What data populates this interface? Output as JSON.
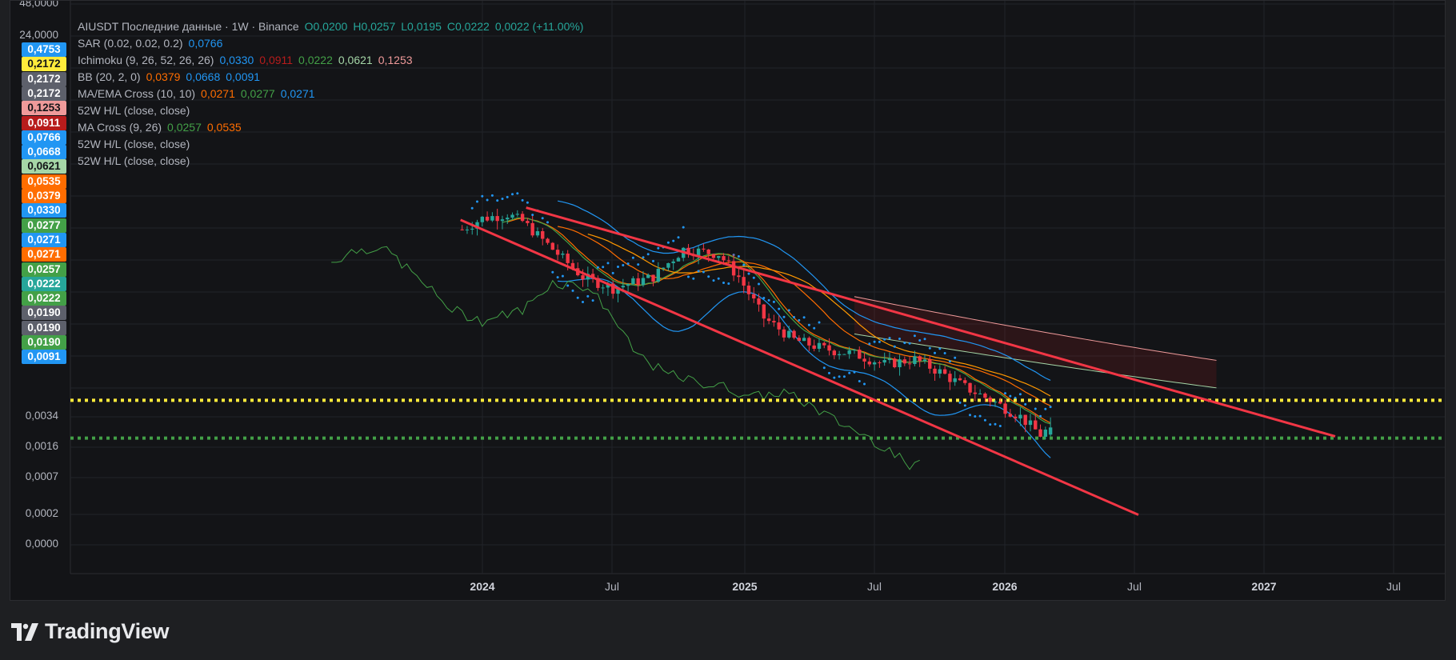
{
  "legend": {
    "main": {
      "symbol": "AIUSDT Последние данные · 1W · Binance",
      "o": "O0,0200",
      "h": "H0,0257",
      "l": "L0,0195",
      "c": "C0,0222",
      "chg": "0,0022 (+11.00%)"
    },
    "rows": [
      {
        "name": "SAR (0.02, 0.02, 0.2)",
        "values": [
          {
            "v": "0,0766",
            "color": "#2196f3"
          }
        ]
      },
      {
        "name": "Ichimoku (9, 26, 52, 26, 26)",
        "values": [
          {
            "v": "0,0330",
            "color": "#2196f3"
          },
          {
            "v": "0,0911",
            "color": "#b71c1c"
          },
          {
            "v": "0,0222",
            "color": "#43a047"
          },
          {
            "v": "0,0621",
            "color": "#a5d6a7"
          },
          {
            "v": "0,1253",
            "color": "#ef9a9a"
          }
        ]
      },
      {
        "name": "BB (20, 2, 0)",
        "values": [
          {
            "v": "0,0379",
            "color": "#ff6d00"
          },
          {
            "v": "0,0668",
            "color": "#2196f3"
          },
          {
            "v": "0,0091",
            "color": "#2196f3"
          }
        ]
      },
      {
        "name": "MA/EMA Cross (10, 10)",
        "values": [
          {
            "v": "0,0271",
            "color": "#ff6d00"
          },
          {
            "v": "0,0277",
            "color": "#43a047"
          },
          {
            "v": "0,0271",
            "color": "#2196f3"
          }
        ]
      },
      {
        "name": "52W H/L (close, close)",
        "values": []
      },
      {
        "name": "MA Cross (9, 26)",
        "values": [
          {
            "v": "0,0257",
            "color": "#43a047"
          },
          {
            "v": "0,0535",
            "color": "#ff6d00"
          }
        ]
      },
      {
        "name": "52W H/L (close, close)",
        "values": []
      },
      {
        "name": "52W H/L (close, close)",
        "values": []
      }
    ]
  },
  "price_axis": {
    "labels": [
      {
        "v": "0,4753",
        "bg": "#2196f3",
        "fg": "#ffffff"
      },
      {
        "v": "0,2172",
        "bg": "#ffeb3b",
        "fg": "#131417"
      },
      {
        "v": "0,2172",
        "bg": "#5d606b",
        "fg": "#ffffff"
      },
      {
        "v": "0,2172",
        "bg": "#5d606b",
        "fg": "#ffffff"
      },
      {
        "v": "0,1253",
        "bg": "#ef9a9a",
        "fg": "#131417"
      },
      {
        "v": "0,0911",
        "bg": "#b71c1c",
        "fg": "#ffffff"
      },
      {
        "v": "0,0766",
        "bg": "#2196f3",
        "fg": "#ffffff"
      },
      {
        "v": "0,0668",
        "bg": "#2196f3",
        "fg": "#ffffff"
      },
      {
        "v": "0,0621",
        "bg": "#a5d6a7",
        "fg": "#131417"
      },
      {
        "v": "0,0535",
        "bg": "#ff6d00",
        "fg": "#ffffff"
      },
      {
        "v": "0,0379",
        "bg": "#ff6d00",
        "fg": "#ffffff"
      },
      {
        "v": "0,0330",
        "bg": "#2196f3",
        "fg": "#ffffff"
      },
      {
        "v": "0,0277",
        "bg": "#43a047",
        "fg": "#ffffff"
      },
      {
        "v": "0,0271",
        "bg": "#2196f3",
        "fg": "#ffffff"
      },
      {
        "v": "0,0271",
        "bg": "#ff6d00",
        "fg": "#ffffff"
      },
      {
        "v": "0,0257",
        "bg": "#43a047",
        "fg": "#ffffff"
      },
      {
        "v": "0,0222",
        "bg": "#26a69a",
        "fg": "#ffffff"
      },
      {
        "v": "0,0222",
        "bg": "#43a047",
        "fg": "#ffffff"
      },
      {
        "v": "0,0190",
        "bg": "#5d606b",
        "fg": "#ffffff"
      },
      {
        "v": "0,0190",
        "bg": "#5d606b",
        "fg": "#ffffff"
      },
      {
        "v": "0,0190",
        "bg": "#43a047",
        "fg": "#ffffff"
      },
      {
        "v": "0,0091",
        "bg": "#2196f3",
        "fg": "#ffffff"
      }
    ],
    "ticks": [
      "48,0000",
      "24,0000",
      "0,0034",
      "0,0016",
      "0,0007",
      "0,0002",
      "0,0000"
    ]
  },
  "chart_data": {
    "type": "candlestick",
    "symbol": "AIUSDT",
    "interval": "1W",
    "exchange": "Binance",
    "y_scale": "log",
    "x_ticks": [
      "2024",
      "Jul",
      "2025",
      "Jul",
      "2026",
      "Jul",
      "2027",
      "Jul"
    ],
    "x_ticks_bold": [
      "2024",
      "2025",
      "2026",
      "2027"
    ],
    "x_range": [
      "2023-12",
      "2027-08"
    ],
    "last_bar": {
      "open": 0.02,
      "high": 0.0257,
      "low": 0.0195,
      "close": 0.0222,
      "change": 0.0022,
      "change_pct": 11.0
    },
    "horizontal_levels": [
      {
        "price": 0.033,
        "style": "dotted",
        "color": "#ffeb3b"
      },
      {
        "price": 0.019,
        "style": "dotted",
        "color": "#43a047"
      }
    ],
    "trend_lines": [
      {
        "from": [
          "2024-03",
          0.55
        ],
        "to": [
          "2027-04",
          0.0195
        ],
        "color": "#f23645"
      },
      {
        "from": [
          "2023-12",
          0.46
        ],
        "to": [
          "2026-07",
          0.0062
        ],
        "color": "#f23645"
      }
    ],
    "colors": {
      "up": "#26a69a",
      "down": "#f23645"
    }
  },
  "brand": {
    "name": "TradingView"
  }
}
